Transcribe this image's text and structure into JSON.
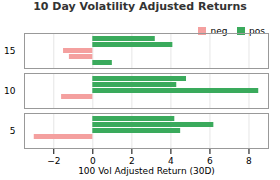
{
  "chart_data": {
    "type": "bar",
    "orientation": "horizontal",
    "title": "10 Day Volatility Adjusted Returns",
    "xlabel": "100 Vol Adjusted Return (30D)",
    "categories": [
      "15",
      "10",
      "5"
    ],
    "series": [
      {
        "name": "neg",
        "color": "#f4a09f",
        "values": [
          [
            null,
            null,
            -1.5,
            -1.2,
            null
          ],
          [
            null,
            null,
            null,
            -1.6
          ],
          [
            null,
            null,
            null,
            -3.0
          ]
        ]
      },
      {
        "name": "pos",
        "color": "#3aaa5c",
        "values": [
          [
            3.2,
            4.1,
            null,
            null,
            1.0
          ],
          [
            4.8,
            4.3,
            8.5,
            null
          ],
          [
            4.2,
            6.2,
            4.5,
            null
          ]
        ]
      }
    ],
    "xlim": [
      -3.5,
      9.0
    ],
    "xticks": [
      -2,
      0,
      2,
      4,
      6,
      8
    ],
    "grid": true,
    "legend": "upper right"
  }
}
